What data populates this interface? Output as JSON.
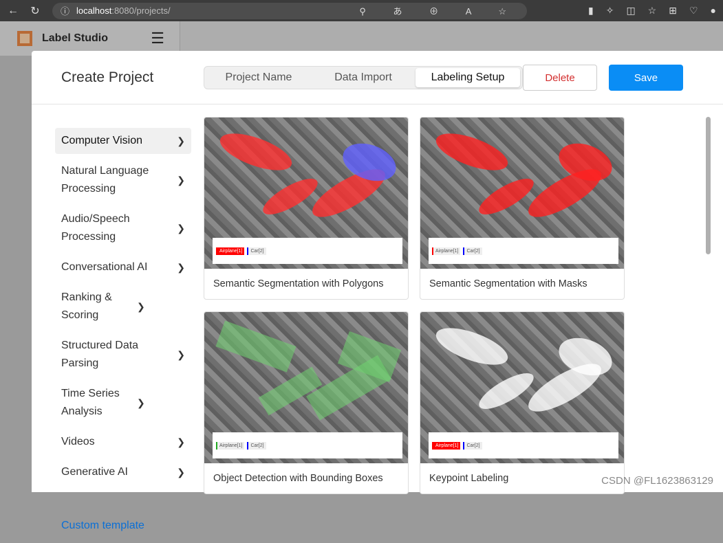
{
  "browser": {
    "url_host": "localhost",
    "url_rest": ":8080/projects/"
  },
  "app": {
    "name": "Label Studio"
  },
  "modal": {
    "title": "Create Project",
    "tabs": [
      {
        "label": "Project Name"
      },
      {
        "label": "Data Import"
      },
      {
        "label": "Labeling Setup",
        "active": true
      }
    ],
    "delete_label": "Delete",
    "save_label": "Save"
  },
  "sidebar": {
    "items": [
      {
        "label": "Computer Vision",
        "active": true
      },
      {
        "label": "Natural Language Processing"
      },
      {
        "label": "Audio/Speech Processing"
      },
      {
        "label": "Conversational AI"
      },
      {
        "label": "Ranking & Scoring"
      },
      {
        "label": "Structured Data Parsing"
      },
      {
        "label": "Time Series Analysis"
      },
      {
        "label": "Videos"
      },
      {
        "label": "Generative AI"
      },
      {
        "label": "Custom template"
      }
    ]
  },
  "templates": [
    {
      "title": "Semantic Segmentation with Polygons",
      "labels": [
        "Airplane[1]",
        "Car[2]"
      ],
      "overlay": "#ff3030"
    },
    {
      "title": "Semantic Segmentation with Masks",
      "labels": [
        "Airplane[1]",
        "Car[2]"
      ],
      "overlay": "#ff2020"
    },
    {
      "title": "Object Detection with Bounding Boxes",
      "labels": [
        "Airplane[1]",
        "Car[2]"
      ],
      "overlay": "#6fd36f"
    },
    {
      "title": "Keypoint Labeling",
      "labels": [
        "Airplane[1]",
        "Car[2]"
      ],
      "overlay": "#ffffff"
    }
  ],
  "colors": {
    "accent": "#0a8df5",
    "danger": "#d32f2f",
    "airplane": "#ff0000",
    "car": "#0000ff"
  },
  "watermark": "CSDN @FL1623863129"
}
